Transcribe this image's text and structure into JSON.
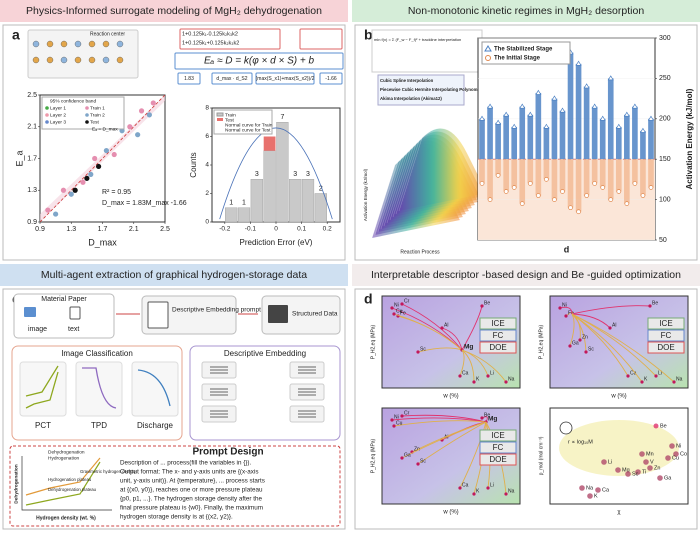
{
  "titles": [
    "Physics-Informed surrogate modeling of MgH₂ dehydrogenation",
    "Non-monotonic kinetic regimes in MgH₂ desorption",
    "Multi-agent extraction of graphical hydrogen-storage data",
    "Interpretable descriptor -based design and Be -guided optimization"
  ],
  "letters": [
    "a",
    "b",
    "c",
    "d"
  ],
  "panel_a": {
    "structure_label": "Reaction center",
    "formula_lines": [
      "1+0.125k₁-0.125k₂k₃k2",
      "1+0.125k₁+0.125k₂k₃k2"
    ],
    "formula": "Eₐ ≈ D = k(φ × d × S) + b",
    "coefficients": [
      "1.83",
      "d_max · d_S2",
      "(max(S_x1)+max(S_x2))/2",
      "-1.66"
    ],
    "scatter": {
      "type": "scatter",
      "xlabel": "D_max",
      "ylabel": "E_a",
      "xlim": [
        0.9,
        2.5
      ],
      "ylim": [
        0.9,
        2.5
      ],
      "xticks": [
        0.9,
        1.3,
        1.7,
        2.1,
        2.5
      ],
      "yticks": [
        0.9,
        1.3,
        1.7,
        2.1,
        2.5
      ],
      "legend": [
        "95% confidence band",
        "Layer 1",
        "Layer 2",
        "Layer 3",
        "Eₐ = D_max"
      ],
      "annotations": [
        "R² = 0.95",
        "D_max = 1.83M_max -1.66"
      ],
      "series": [
        {
          "name": "Train 1",
          "color": "#e58fb0",
          "x": [
            1.0,
            1.2,
            1.45,
            1.6,
            1.85,
            2.05,
            2.2,
            2.35
          ],
          "values": [
            1.05,
            1.3,
            1.4,
            1.7,
            1.75,
            2.1,
            2.3,
            2.4
          ]
        },
        {
          "name": "Train 2",
          "color": "#7fa6c9",
          "x": [
            1.1,
            1.3,
            1.55,
            1.75,
            1.95,
            2.15,
            2.3
          ],
          "values": [
            1.0,
            1.25,
            1.5,
            1.8,
            2.05,
            2.0,
            2.25
          ]
        },
        {
          "name": "Test",
          "color": "#111111",
          "x": [
            1.35,
            1.5,
            1.65
          ],
          "values": [
            1.3,
            1.45,
            1.6
          ]
        }
      ]
    },
    "histogram": {
      "type": "histogram",
      "xlabel": "Prediction Error (eV)",
      "ylabel": "Counts",
      "bins": [
        -0.2,
        -0.15,
        -0.1,
        -0.05,
        0,
        0.05,
        0.1,
        0.15,
        0.2
      ],
      "xlim": [
        -0.25,
        0.25
      ],
      "ylim": [
        0,
        8
      ],
      "xticks": [
        -0.2,
        -0.1,
        0,
        0.1,
        0.2
      ],
      "yticks": [
        0,
        2,
        4,
        6,
        8
      ],
      "legend": [
        "Normal curve for Train",
        "Normal curve for Test"
      ],
      "series": [
        {
          "name": "Train",
          "color": "#c9c9c9",
          "values": [
            1,
            1,
            3,
            5,
            7,
            3,
            3,
            2
          ]
        },
        {
          "name": "Test",
          "color": "#e8716d",
          "values": [
            0,
            0,
            0,
            1,
            0,
            0,
            0,
            0
          ]
        }
      ]
    }
  },
  "panel_b": {
    "equation": "min f(x) = Σ (F_w − F_f)² + trackline interpretation",
    "methods": [
      "Cubic Spline Interpolation",
      "Piecewise Cubic Hermite Interpolating Polynomial (PCHIP)",
      "Akima Interpolation (Akima12)"
    ],
    "surface_xlabel": "Reaction Process",
    "surface_ylabel": "Activation Energy (kJ/mol)",
    "chart": {
      "type": "bar",
      "xlabel": "d",
      "ylabel": "Activation Energy (kJ/mol)",
      "ylim": [
        50,
        300
      ],
      "yticks": [
        50,
        100,
        150,
        200,
        250,
        300
      ],
      "baseline": 150,
      "series": [
        {
          "name": "The Stabilized Stage",
          "color": "#4d82c4",
          "values": [
            200,
            215,
            195,
            205,
            190,
            215,
            205,
            232,
            190,
            225,
            210,
            282,
            268,
            240,
            215,
            200,
            250,
            190,
            205,
            215,
            185,
            200
          ]
        },
        {
          "name": "The Initial Stage",
          "color": "#f2b48c",
          "values": [
            120,
            100,
            130,
            110,
            115,
            95,
            120,
            105,
            125,
            100,
            110,
            90,
            85,
            105,
            120,
            115,
            100,
            110,
            95,
            120,
            105,
            115
          ]
        }
      ]
    }
  },
  "panel_c": {
    "material": "Material Paper",
    "inputs": [
      "image",
      "text"
    ],
    "prompt_box": "Descriptive Embedding prompt",
    "output": "Structured Data",
    "classification": "Image Classification",
    "classes": [
      "PCT",
      "TPD",
      "Discharge"
    ],
    "embedding": "Descriptive Embedding",
    "prompt_title": "Prompt Design",
    "prompt_lines": [
      "Description of ... process(fill the variables in {}).",
      "Output format: The x- and y-axis units are {(x-axis",
      "unit, y-axis unit)}. At {temperature}, ... process starts",
      "at {(x0, y0)}, reaches one or more pressure plateau",
      "{p0, p1, ...}. The hydrogen storage density after the",
      "final pressure plateau is {w0}. Finally, the maximum",
      "hydrogen storage density is at {(x2, y2)}."
    ],
    "diagram_labels": [
      "Dehydrogenation",
      "Hydrogenation",
      "Gravimetric hydrogen density",
      "Hydrogenation plateau",
      "Dehydrogenation plateau",
      "Hydrogen density (wt. %)",
      "Dehydrogenation"
    ]
  },
  "panel_d": {
    "xlabel": "w (%)",
    "ylabel": "P_H2,eq (MPa)",
    "legend": [
      "ICE",
      "FC",
      "DOE"
    ],
    "elements": [
      "Be",
      "Ni",
      "Cr",
      "Fe",
      "Cu",
      "Al",
      "Sc",
      "Mg",
      "Ca",
      "K",
      "Li",
      "Na",
      "Mn",
      "Zn",
      "Ga",
      "Ti",
      "V",
      "Co"
    ],
    "scatter_xlabel": "χ",
    "scatter_ylabel": "ρ_mol (mol cm⁻³)",
    "scatter_note": "r ∝ log₁₀M"
  }
}
